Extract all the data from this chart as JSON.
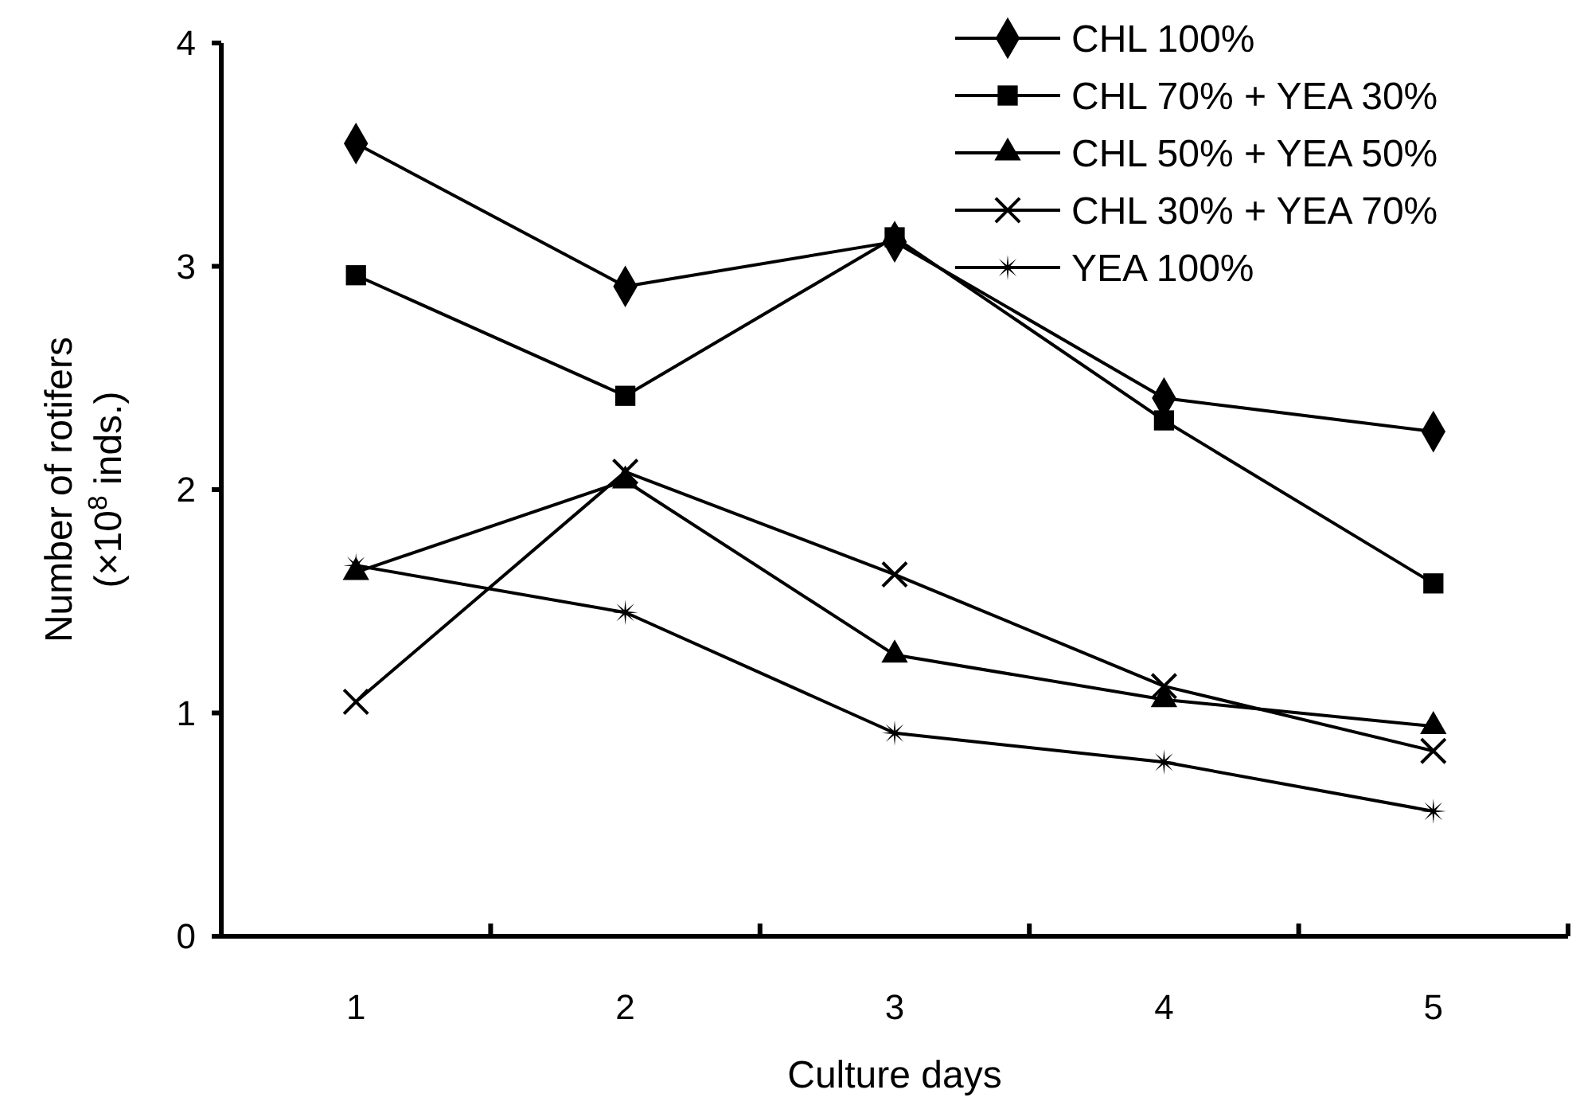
{
  "chart_data": {
    "type": "line",
    "xlabel": "Culture days",
    "ylabel": "Number of rotifers\n(×10$^{8}$ inds.)",
    "categories": [
      "1",
      "2",
      "3",
      "4",
      "5"
    ],
    "ylim": [
      0,
      4
    ],
    "yticks": [
      0,
      1,
      2,
      3,
      4
    ],
    "grid": false,
    "legend": "top right",
    "line_style": "solid",
    "series": [
      {
        "name": "CHL 100%",
        "color": "#000000",
        "marker": "diamond",
        "values": [
          3.55,
          2.91,
          3.11,
          2.41,
          2.26
        ]
      },
      {
        "name": "CHL 70% + YEA 30%",
        "color": "#000000",
        "marker": "square",
        "values": [
          2.96,
          2.42,
          3.13,
          2.31,
          1.58
        ]
      },
      {
        "name": "CHL 50% + YEA 50%",
        "color": "#000000",
        "marker": "triangle",
        "values": [
          1.63,
          2.04,
          1.26,
          1.06,
          0.94
        ]
      },
      {
        "name": "CHL 30% + YEA 70%",
        "color": "#000000",
        "marker": "cross",
        "values": [
          1.05,
          2.08,
          1.62,
          1.12,
          0.83
        ]
      },
      {
        "name": "YEA 100%",
        "color": "#000000",
        "marker": "star",
        "values": [
          1.66,
          1.45,
          0.91,
          0.78,
          0.56
        ]
      }
    ]
  }
}
